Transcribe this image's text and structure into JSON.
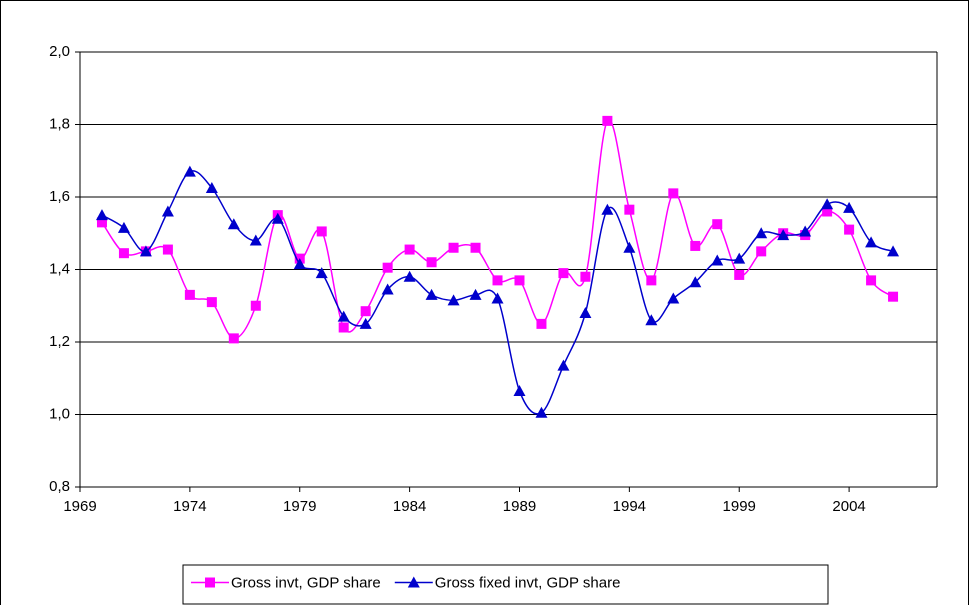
{
  "chart_data": {
    "type": "line",
    "x": [
      1970,
      1971,
      1972,
      1973,
      1974,
      1975,
      1976,
      1977,
      1978,
      1979,
      1980,
      1981,
      1982,
      1983,
      1984,
      1985,
      1986,
      1987,
      1988,
      1989,
      1990,
      1991,
      1992,
      1993,
      1994,
      1995,
      1996,
      1997,
      1998,
      1999,
      2000,
      2001,
      2002,
      2003,
      2004,
      2005,
      2006
    ],
    "series": [
      {
        "name": "Gross invt, GDP share",
        "color": "#ff00ff",
        "marker": "square",
        "values": [
          1.53,
          1.445,
          1.45,
          1.455,
          1.33,
          1.31,
          1.21,
          1.3,
          1.55,
          1.43,
          1.505,
          1.24,
          1.285,
          1.405,
          1.455,
          1.42,
          1.46,
          1.46,
          1.37,
          1.37,
          1.25,
          1.39,
          1.38,
          1.81,
          1.565,
          1.37,
          1.61,
          1.465,
          1.525,
          1.385,
          1.45,
          1.5,
          1.495,
          1.56,
          1.51,
          1.37,
          1.325
        ]
      },
      {
        "name": "Gross fixed invt, GDP share",
        "color": "#0000cc",
        "marker": "triangle",
        "values": [
          1.55,
          1.515,
          1.45,
          1.56,
          1.67,
          1.625,
          1.525,
          1.48,
          1.54,
          1.415,
          1.39,
          1.27,
          1.25,
          1.345,
          1.38,
          1.33,
          1.315,
          1.33,
          1.32,
          1.065,
          1.005,
          1.135,
          1.28,
          1.565,
          1.46,
          1.26,
          1.32,
          1.365,
          1.425,
          1.43,
          1.5,
          1.495,
          1.505,
          1.58,
          1.57,
          1.475,
          1.45
        ]
      }
    ],
    "xlim": [
      1969,
      2008
    ],
    "xticks": [
      1969,
      1974,
      1979,
      1984,
      1989,
      1994,
      1999,
      2004
    ],
    "ylim": [
      0.8,
      2.0
    ],
    "yticks": [
      {
        "value": 0.8,
        "label": "0,8"
      },
      {
        "value": 1.0,
        "label": "1,0"
      },
      {
        "value": 1.2,
        "label": "1,2"
      },
      {
        "value": 1.4,
        "label": "1,4"
      },
      {
        "value": 1.6,
        "label": "1,6"
      },
      {
        "value": 1.8,
        "label": "1,8"
      },
      {
        "value": 2.0,
        "label": "2,0"
      }
    ],
    "grid": true,
    "smooth": true,
    "legend": "bottom"
  }
}
